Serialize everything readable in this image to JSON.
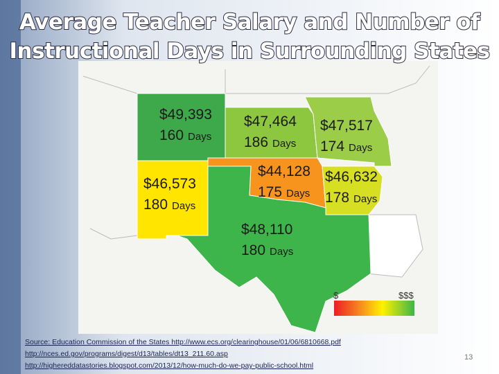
{
  "title": {
    "lines": [
      "Average Teacher Salary and Number of",
      "Instructional Days in Surrounding States"
    ]
  },
  "states": [
    {
      "salary": "$49,393",
      "days": "160",
      "unit": "Days",
      "color": "#3ea94b"
    },
    {
      "salary": "$47,464",
      "days": "186",
      "unit": "Days",
      "color": "#8dc63f"
    },
    {
      "salary": "$47,517",
      "days": "174",
      "unit": "Days",
      "color": "#9bcd48"
    },
    {
      "salary": "$46,573",
      "days": "180",
      "unit": "Days",
      "color": "#ffe500"
    },
    {
      "salary": "$44,128",
      "days": "175",
      "unit": "Days",
      "color": "#f7941d"
    },
    {
      "salary": "$46,632",
      "days": "178",
      "unit": "Days",
      "color": "#d7df23"
    },
    {
      "salary": "$48,110",
      "days": "180",
      "unit": "Days",
      "color": "#3db54a"
    }
  ],
  "legend": {
    "low": "$",
    "high": "$$$"
  },
  "sources": [
    "Source: Education Commission of the States http://www.ecs.org/clearinghouse/01/06/6810668.pdf",
    "http://nces.ed.gov/programs/digest/d13/tables/dt13_211.60.asp",
    "http://highereddatastories.blogspot.com/2013/12/how-much-do-we-pay-public-school.html"
  ],
  "slide_number": "13"
}
